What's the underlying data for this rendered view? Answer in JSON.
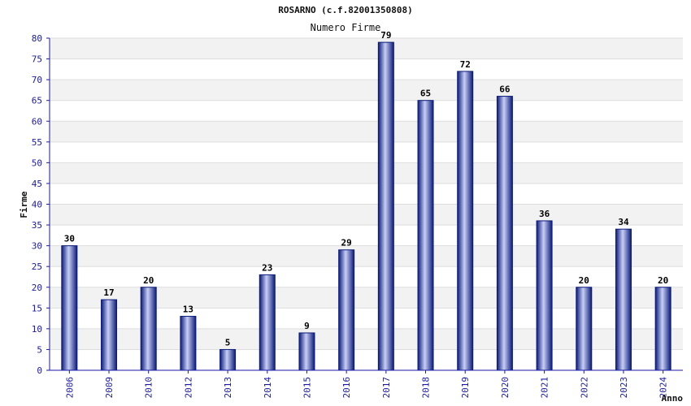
{
  "chart_data": {
    "type": "bar",
    "title": "ROSARNO (c.f.82001350808)",
    "subtitle": "Numero Firme",
    "xlabel": "Anno",
    "ylabel": "Firme",
    "categories": [
      "2006",
      "2009",
      "2010",
      "2012",
      "2013",
      "2014",
      "2015",
      "2016",
      "2017",
      "2018",
      "2019",
      "2020",
      "2021",
      "2022",
      "2023",
      "2024"
    ],
    "values": [
      30,
      17,
      20,
      13,
      5,
      23,
      9,
      29,
      79,
      65,
      72,
      66,
      36,
      20,
      34,
      20
    ],
    "ylim": [
      0,
      80
    ],
    "ytick_step": 5,
    "grid": true,
    "colors": {
      "bar_dark": "#0a1a7a",
      "bar_light": "#c8cff5",
      "band": "#f2f2f2",
      "tick_text": "#1a1aa6",
      "axis": "#1a1aa6"
    }
  }
}
